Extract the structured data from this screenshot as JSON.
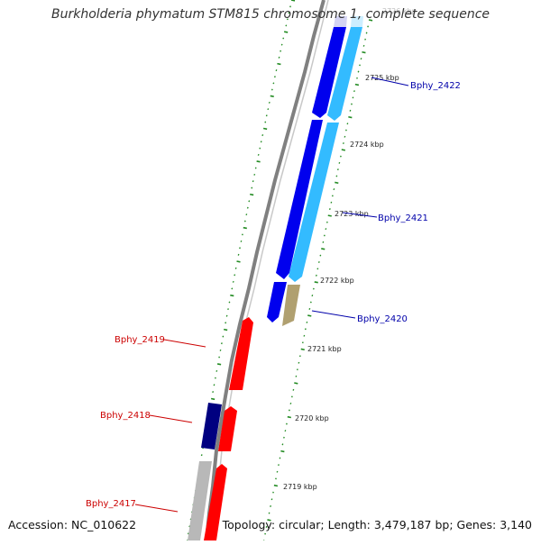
{
  "title": "Burkholderia phymatum STM815 chromosome 1, complete sequence",
  "footer": {
    "accession": "Accession: NC_010622",
    "summary": "Topology: circular; Length: 3,479,187 bp; Genes: 3,140"
  },
  "colors": {
    "background": "#ffffff",
    "backbone": "#808080",
    "tick": "#228b22",
    "forward_gene": "#0000ee",
    "forward_gene_dark": "#000080",
    "forward_cds": "#33bbff",
    "reverse_gene": "#ff0000",
    "reverse_label": "#cc0000",
    "forward_label": "#0000aa",
    "olive_feature": "#b0a070",
    "gray_feature": "#b8b8b8"
  },
  "scale_labels": [
    {
      "text": "2726 kbp",
      "kbp": 2726
    },
    {
      "text": "2725 kbp",
      "kbp": 2725
    },
    {
      "text": "2724 kbp",
      "kbp": 2724
    },
    {
      "text": "2723 kbp",
      "kbp": 2723
    },
    {
      "text": "2722 kbp",
      "kbp": 2722
    },
    {
      "text": "2721 kbp",
      "kbp": 2721
    },
    {
      "text": "2720 kbp",
      "kbp": 2720
    },
    {
      "text": "2719 kbp",
      "kbp": 2719
    }
  ],
  "gene_labels": [
    {
      "text": "Bphy_2422",
      "strand": "forward"
    },
    {
      "text": "Bphy_2421",
      "strand": "forward"
    },
    {
      "text": "Bphy_2420",
      "strand": "forward"
    },
    {
      "text": "Bphy_2419",
      "strand": "reverse"
    },
    {
      "text": "Bphy_2418",
      "strand": "reverse"
    },
    {
      "text": "Bphy_2417",
      "strand": "reverse"
    }
  ]
}
